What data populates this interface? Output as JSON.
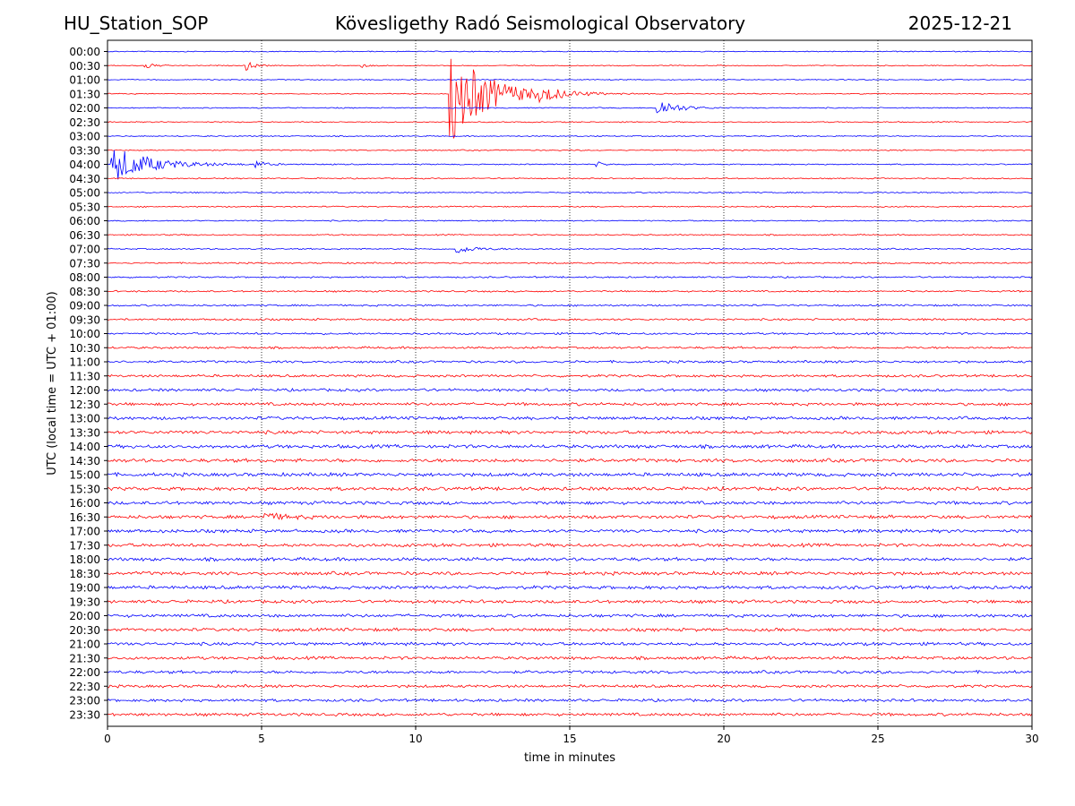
{
  "header": {
    "station": "HU_Station_SOP",
    "observatory": "Kövesligethy Radó Seismological Observatory",
    "date": "2025-12-21"
  },
  "chart_data": {
    "type": "line",
    "title": "Kövesligethy Radó Seismological Observatory",
    "xlabel": "time in minutes",
    "ylabel": "UTC (local time = UTC + 01:00)",
    "xlim": [
      0,
      30
    ],
    "x_ticks": [
      0,
      5,
      10,
      15,
      20,
      25,
      30
    ],
    "grid": "vertical dotted lines at x ticks",
    "row_labels": [
      "00:00",
      "00:30",
      "01:00",
      "01:30",
      "02:00",
      "02:30",
      "03:00",
      "03:30",
      "04:00",
      "04:30",
      "05:00",
      "05:30",
      "06:00",
      "06:30",
      "07:00",
      "07:30",
      "08:00",
      "08:30",
      "09:00",
      "09:30",
      "10:00",
      "10:30",
      "11:00",
      "11:30",
      "12:00",
      "12:30",
      "13:00",
      "13:30",
      "14:00",
      "14:30",
      "15:00",
      "15:30",
      "16:00",
      "16:30",
      "17:00",
      "17:30",
      "18:00",
      "18:30",
      "19:00",
      "19:30",
      "20:00",
      "20:30",
      "21:00",
      "21:30",
      "22:00",
      "22:30",
      "23:00",
      "23:30"
    ],
    "colors": [
      "#0000ff",
      "#ff0000"
    ],
    "noise_amplitude_profile": [
      0.25,
      0.25,
      0.25,
      0.25,
      0.28,
      0.28,
      0.28,
      0.3,
      0.3,
      0.3,
      0.32,
      0.32,
      0.32,
      0.33,
      0.35,
      0.37,
      0.4,
      0.42,
      0.45,
      0.5,
      0.52,
      0.55,
      0.6,
      0.65,
      0.7,
      0.75,
      0.8,
      0.85,
      0.88,
      0.9,
      0.9,
      0.88,
      0.85,
      0.85,
      0.85,
      0.85,
      0.85,
      0.85,
      0.85,
      0.82,
      0.8,
      0.8,
      0.8,
      0.78,
      0.75,
      0.7,
      0.7,
      0.75
    ],
    "events": [
      {
        "row": 1,
        "t": 1.2,
        "amp": 4,
        "dur": 0.6
      },
      {
        "row": 1,
        "t": 4.5,
        "amp": 5,
        "dur": 0.6
      },
      {
        "row": 1,
        "t": 8.2,
        "amp": 2.5,
        "dur": 0.5
      },
      {
        "row": 3,
        "t": 11.1,
        "amp": 55,
        "dur": 2.5
      },
      {
        "row": 3,
        "t": 14.0,
        "amp": 6,
        "dur": 1.5
      },
      {
        "row": 4,
        "t": 17.8,
        "amp": 12,
        "dur": 1.2
      },
      {
        "row": 8,
        "t": 0.1,
        "amp": 22,
        "dur": 2.5
      },
      {
        "row": 8,
        "t": 4.8,
        "amp": 4,
        "dur": 0.6
      },
      {
        "row": 8,
        "t": 15.8,
        "amp": 4,
        "dur": 0.5
      },
      {
        "row": 14,
        "t": 11.3,
        "amp": 5,
        "dur": 1.2
      },
      {
        "row": 33,
        "t": 5.1,
        "amp": 4,
        "dur": 1.5
      }
    ]
  }
}
